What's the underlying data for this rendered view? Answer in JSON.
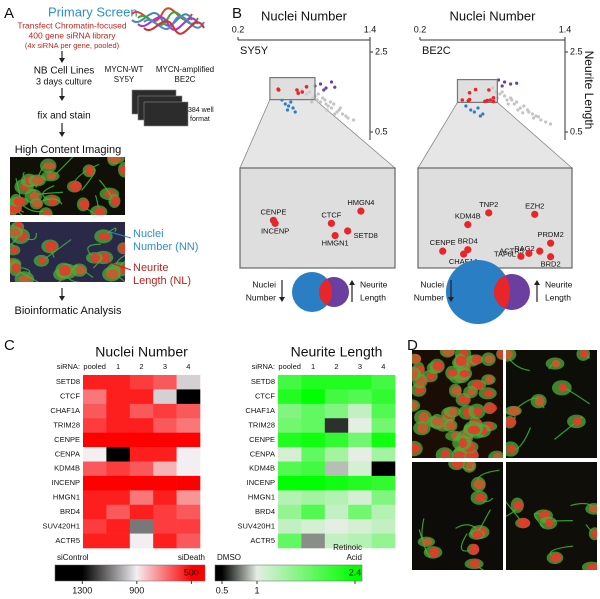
{
  "panels": {
    "a": {
      "letter": "A",
      "title": "Primary  Screen",
      "transfect": [
        "Transfect Chromatin-focused",
        "400 gene siRNA library",
        "(4x siRNA per gene, pooled)"
      ],
      "culture": [
        "NB Cell Lines",
        "3 days culture"
      ],
      "lines": [
        [
          "MYCN-WT",
          "SY5Y"
        ],
        [
          "MYCN-amplified",
          "BE2C"
        ]
      ],
      "plate": [
        "384 well",
        "format"
      ],
      "fix": "fix and stain",
      "imaging": "High Content Imaging",
      "nn": [
        "Nuclei",
        "Number (NN)"
      ],
      "nl": [
        "Neurite",
        "Length (NL)"
      ],
      "analysis": "Bioinformatic Analysis"
    },
    "b": {
      "letter": "B",
      "y_label": "Neurite Length",
      "hit_color": "#e8262a",
      "plots": [
        {
          "x_label": "Nuclei Number",
          "label": "SY5Y",
          "xlim": [
            0.2,
            1.4
          ],
          "ylim": [
            0.3,
            2.8
          ],
          "xticks": [
            0.2,
            1.4
          ],
          "yticks": [
            0.5,
            2.5
          ],
          "zoom_xlim": [
            0.49,
            0.9
          ],
          "zoom_ylim": [
            1.31,
            1.86
          ],
          "groups": [
            {
              "color": "#c4c4c4",
              "x": [
                0.78,
                0.82,
                0.85,
                0.88,
                0.9,
                0.92,
                0.95,
                0.97,
                1.0,
                1.02,
                1.05,
                1.07,
                1.1,
                1.12,
                1.15,
                1.18,
                1.2,
                1.25,
                0.93,
                0.99,
                1.04,
                1.08,
                1.13,
                0.87,
                1.01
              ],
              "y": [
                1.55,
                1.45,
                1.5,
                1.35,
                1.4,
                1.3,
                1.25,
                1.35,
                1.2,
                1.15,
                1.1,
                1.2,
                1.0,
                1.05,
                0.95,
                0.9,
                0.85,
                0.8,
                1.45,
                1.3,
                1.25,
                0.95,
                1.1,
                1.25,
                1.05
              ]
            },
            {
              "color": "#2a7fc4",
              "x": [
                0.6,
                0.63,
                0.66,
                0.68,
                0.7,
                0.72,
                0.65
              ],
              "y": [
                1.3,
                1.2,
                1.15,
                1.25,
                1.1,
                1.0,
                1.05
              ]
            },
            {
              "color": "#6b3fa0",
              "x": [
                0.9,
                0.95,
                1.0,
                1.05,
                1.08,
                0.98
              ],
              "y": [
                1.65,
                1.7,
                1.6,
                1.75,
                1.62,
                1.55
              ]
            }
          ],
          "hits": [
            {
              "name": "CENPE",
              "x": 0.565,
              "y": 1.57
            },
            {
              "name": "INCENP",
              "x": 0.57,
              "y": 1.55
            },
            {
              "name": "CTCF",
              "x": 0.736,
              "y": 1.55
            },
            {
              "name": "HMGN4",
              "x": 0.823,
              "y": 1.63
            },
            {
              "name": "SETD8",
              "x": 0.784,
              "y": 1.5
            },
            {
              "name": "HMGN1",
              "x": 0.747,
              "y": 1.47
            }
          ]
        },
        {
          "x_label": "Nuclei Number",
          "label": "BE2C",
          "xlim": [
            0.2,
            1.4
          ],
          "ylim": [
            0.3,
            2.8
          ],
          "xticks": [
            0.2,
            1.4
          ],
          "yticks": [
            0.5,
            2.5
          ],
          "zoom_xlim": [
            0.51,
            0.84
          ],
          "zoom_ylim": [
            1.24,
            1.81
          ],
          "groups": [
            {
              "color": "#c4c4c4",
              "x": [
                0.8,
                0.83,
                0.86,
                0.9,
                0.92,
                0.95,
                0.98,
                1.0,
                1.03,
                1.06,
                1.1,
                1.13,
                1.16,
                1.2,
                1.24,
                1.28,
                0.88,
                0.96,
                1.01,
                1.09,
                1.14,
                0.84,
                0.93,
                1.05,
                1.18
              ],
              "y": [
                1.6,
                1.5,
                1.45,
                1.4,
                1.3,
                1.35,
                1.2,
                1.25,
                1.1,
                1.15,
                1.0,
                0.95,
                0.9,
                0.8,
                0.75,
                0.7,
                1.5,
                1.3,
                1.05,
                1.05,
                0.85,
                1.35,
                1.2,
                0.98,
                0.88
              ]
            },
            {
              "color": "#2a7fc4",
              "x": [
                0.58,
                0.62,
                0.65,
                0.68,
                0.72,
                0.7
              ],
              "y": [
                1.15,
                1.05,
                1.0,
                1.1,
                0.95,
                0.9
              ]
            },
            {
              "color": "#6b3fa0",
              "x": [
                0.85,
                0.9,
                0.95,
                0.88,
                1.0
              ],
              "y": [
                1.8,
                1.75,
                1.7,
                1.65,
                1.72
              ]
            }
          ],
          "hits": [
            {
              "name": "TNP2",
              "x": 0.66,
              "y": 1.56
            },
            {
              "name": "EZH2",
              "x": 0.77,
              "y": 1.55
            },
            {
              "name": "KDM4B",
              "x": 0.61,
              "y": 1.48
            },
            {
              "name": "CENPE",
              "x": 0.55,
              "y": 1.3
            },
            {
              "name": "BRD4",
              "x": 0.61,
              "y": 1.31
            },
            {
              "name": "CHAF1A",
              "x": 0.6,
              "y": 1.28
            },
            {
              "name": "PRDM2",
              "x": 0.808,
              "y": 1.354
            },
            {
              "name": "RAG2",
              "x": 0.782,
              "y": 1.3
            },
            {
              "name": "ACTR5",
              "x": 0.756,
              "y": 1.285
            },
            {
              "name": "TAF6L",
              "x": 0.737,
              "y": 1.265
            },
            {
              "name": "BRD2",
              "x": 0.808,
              "y": 1.262
            }
          ]
        }
      ],
      "venn": [
        {
          "left": [
            "Nuclei",
            "Number"
          ],
          "right": [
            "Neurite",
            "Length"
          ]
        },
        {
          "left": [
            "Nuclei",
            "Number"
          ],
          "right": [
            "Neurite",
            "Length"
          ]
        }
      ]
    },
    "c": {
      "letter": "C",
      "heatmaps": [
        {
          "title": "Nuclei Number",
          "sirna_label": "siRNA:",
          "columns": [
            "pooled",
            "1",
            "2",
            "3",
            "4"
          ],
          "rows": [
            "SETD8",
            "CTCF",
            "CHAF1A",
            "TRIM28",
            "CENPE",
            "CENPA",
            "KDM4B",
            "INCENP",
            "HMGN1",
            "BRD4",
            "SUV420H1",
            "ACTR5"
          ],
          "values": [
            [
              550,
              550,
              600,
              650,
              950
            ],
            [
              700,
              550,
              550,
              950,
              1300
            ],
            [
              650,
              550,
              650,
              600,
              650
            ],
            [
              600,
              550,
              550,
              650,
              700
            ],
            [
              500,
              500,
              500,
              500,
              500
            ],
            [
              900,
              1300,
              550,
              550,
              900
            ],
            [
              650,
              600,
              650,
              800,
              900
            ],
            [
              500,
              500,
              500,
              500,
              500
            ],
            [
              550,
              550,
              700,
              550,
              750
            ],
            [
              550,
              650,
              550,
              600,
              650
            ],
            [
              600,
              550,
              1100,
              600,
              600
            ],
            [
              550,
              550,
              900,
              550,
              650
            ]
          ],
          "colorbar": {
            "lim": [
              1500,
              400
            ],
            "ticks": [
              1300,
              900,
              500
            ],
            "colors": [
              "#000000",
              "#f2eef2",
              "#ff0000"
            ],
            "left_label": "siControl",
            "right_label": [
              "siDeath"
            ]
          }
        },
        {
          "title": "Neurite Length",
          "sirna_label": "siRNA:",
          "columns": [
            "pooled",
            "1",
            "2",
            "3",
            "4"
          ],
          "rows": [
            "SETD8",
            "CTCF",
            "CHAF1A",
            "TRIM28",
            "CENPE",
            "CENPA",
            "KDM4B",
            "INCENP",
            "HMGN1",
            "BRD4",
            "SUV420H1",
            "ACTR5"
          ],
          "values": [
            [
              2.0,
              2.2,
              2.2,
              2.2,
              2.0
            ],
            [
              2.2,
              2.4,
              2.0,
              1.9,
              2.1
            ],
            [
              1.6,
              1.8,
              1.6,
              1.2,
              1.9
            ],
            [
              1.7,
              1.8,
              0.6,
              1.0,
              1.7
            ],
            [
              2.2,
              2.3,
              2.1,
              1.7,
              2.3
            ],
            [
              1.1,
              1.8,
              1.4,
              1.0,
              1.4
            ],
            [
              1.9,
              2.0,
              0.9,
              1.1,
              0.5
            ],
            [
              2.4,
              2.4,
              2.3,
              2.2,
              2.1
            ],
            [
              1.3,
              1.4,
              1.3,
              1.1,
              1.6
            ],
            [
              1.5,
              1.9,
              1.2,
              1.7,
              1.3
            ],
            [
              1.2,
              1.1,
              1.0,
              1.1,
              1.2
            ],
            [
              1.8,
              0.8,
              1.2,
              1.3,
              1.5
            ]
          ],
          "colorbar": {
            "lim": [
              0.4,
              2.5
            ],
            "ticks": [
              0.5,
              1,
              2.4
            ],
            "colors": [
              "#000000",
              "#e4eee2",
              "#00ff00"
            ],
            "left_label": "DMSO",
            "right_label": [
              "Retinoic",
              "Acid"
            ]
          }
        }
      ]
    },
    "d": {
      "letter": "D"
    }
  }
}
